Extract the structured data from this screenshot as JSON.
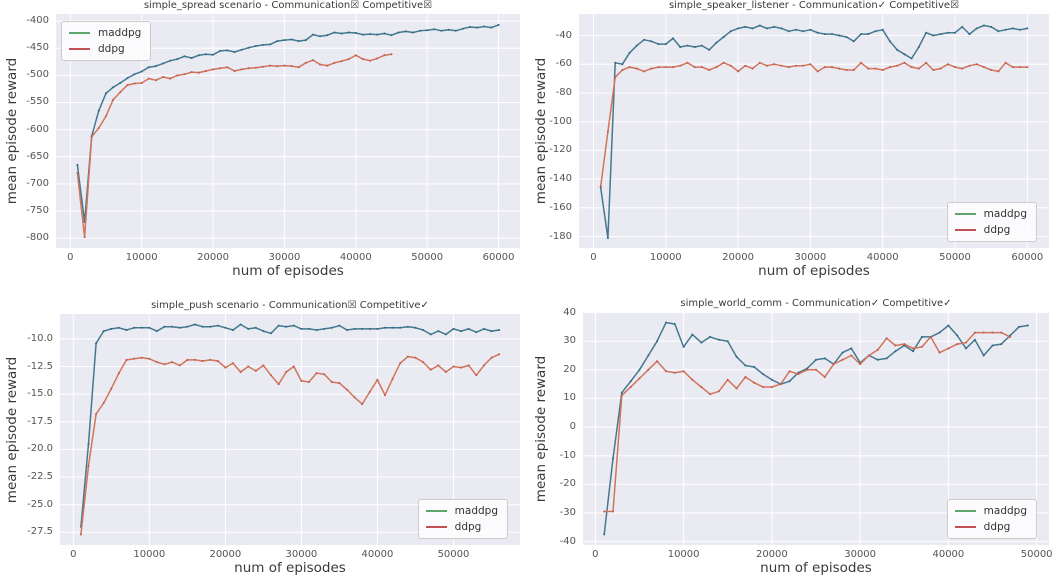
{
  "figure": {
    "background": "#ffffff",
    "axes_background": "#eaeaf2",
    "grid_color": "#ffffff",
    "title_color": "#3a3a3a",
    "tick_color": "#555555"
  },
  "chart_data": [
    {
      "type": "line",
      "title": "simple_spread scenario - Communication☒ Competitive☒",
      "xlabel": "num of episodes",
      "ylabel": "mean episode reward",
      "grid": true,
      "legend_position": "top-left",
      "xlim": [
        -2000,
        63000
      ],
      "ylim": [
        -818,
        -387
      ],
      "xticks": [
        0,
        10000,
        20000,
        30000,
        40000,
        50000,
        60000
      ],
      "xtick_labels": [
        "0",
        "10000",
        "20000",
        "30000",
        "40000",
        "50000",
        "60000"
      ],
      "yticks": [
        -800,
        -750,
        -700,
        -650,
        -600,
        -550,
        -500,
        -450,
        -400
      ],
      "ytick_labels": [
        "-800",
        "-750",
        "-700",
        "-650",
        "-600",
        "-550",
        "-500",
        "-450",
        "-400"
      ],
      "series": [
        {
          "name": "maddpg",
          "line_color": "#44798e",
          "marker_color": "#2e6a88",
          "legend_color": "#5fa56d",
          "x_start": 1000,
          "x_step": 1000,
          "values": [
            -665,
            -770,
            -612,
            -565,
            -533,
            -522,
            -514,
            -505,
            -498,
            -493,
            -485,
            -483,
            -478,
            -473,
            -470,
            -465,
            -468,
            -463,
            -461,
            -462,
            -455,
            -454,
            -457,
            -453,
            -449,
            -446,
            -444,
            -443,
            -437,
            -435,
            -434,
            -437,
            -435,
            -425,
            -428,
            -426,
            -421,
            -423,
            -421,
            -422,
            -425,
            -424,
            -425,
            -423,
            -426,
            -421,
            -419,
            -421,
            -418,
            -417,
            -415,
            -418,
            -416,
            -418,
            -414,
            -411,
            -412,
            -410,
            -412,
            -407
          ]
        },
        {
          "name": "ddpg",
          "line_color": "#d1755b",
          "marker_color": "#c25a50",
          "legend_color": "#c25052",
          "x_start": 1000,
          "x_step": 1000,
          "values": [
            -680,
            -798,
            -613,
            -597,
            -575,
            -545,
            -531,
            -518,
            -515,
            -514,
            -506,
            -509,
            -503,
            -506,
            -500,
            -498,
            -494,
            -495,
            -492,
            -489,
            -487,
            -485,
            -492,
            -489,
            -487,
            -486,
            -484,
            -482,
            -483,
            -482,
            -483,
            -485,
            -477,
            -472,
            -480,
            -482,
            -477,
            -474,
            -470,
            -463,
            -470,
            -473,
            -469,
            -463,
            -461
          ]
        }
      ]
    },
    {
      "type": "line",
      "title": "simple_speaker_listener - Communication✓ Competitive☒",
      "xlabel": "num of episodes",
      "ylabel": "mean episode reward",
      "grid": true,
      "legend_position": "bottom-right",
      "xlim": [
        -2000,
        63000
      ],
      "ylim": [
        -188,
        -25
      ],
      "xticks": [
        0,
        10000,
        20000,
        30000,
        40000,
        50000,
        60000
      ],
      "xtick_labels": [
        "0",
        "10000",
        "20000",
        "30000",
        "40000",
        "50000",
        "60000"
      ],
      "yticks": [
        -180,
        -160,
        -140,
        -120,
        -100,
        -80,
        -60,
        -40
      ],
      "ytick_labels": [
        "-180",
        "-160",
        "-140",
        "-120",
        "-100",
        "-80",
        "-60",
        "-40"
      ],
      "series": [
        {
          "name": "maddpg",
          "line_color": "#44798e",
          "marker_color": "#2e6a88",
          "legend_color": "#5fa56d",
          "x_start": 1000,
          "x_step": 1000,
          "values": [
            -146,
            -181,
            -59,
            -60,
            -52,
            -47,
            -43,
            -44,
            -46,
            -46,
            -42,
            -48,
            -47,
            -48,
            -47,
            -50,
            -45,
            -41,
            -37,
            -35,
            -34,
            -35,
            -33,
            -35,
            -34,
            -35,
            -37,
            -36,
            -37,
            -36,
            -38,
            -39,
            -39,
            -40,
            -41,
            -44,
            -39,
            -39,
            -37,
            -36,
            -44,
            -50,
            -53,
            -56,
            -48,
            -38,
            -40,
            -39,
            -38,
            -38,
            -34,
            -39,
            -35,
            -33,
            -34,
            -37,
            -36,
            -35,
            -36,
            -35
          ]
        },
        {
          "name": "ddpg",
          "line_color": "#d1755b",
          "marker_color": "#c25a50",
          "legend_color": "#c25052",
          "x_start": 1000,
          "x_step": 1000,
          "values": [
            -145,
            -107,
            -69,
            -64,
            -62,
            -63,
            -65,
            -63,
            -62,
            -62,
            -62,
            -61,
            -59,
            -62,
            -62,
            -64,
            -62,
            -59,
            -61,
            -65,
            -61,
            -63,
            -59,
            -61,
            -60,
            -61,
            -62,
            -61,
            -61,
            -60,
            -65,
            -62,
            -62,
            -63,
            -64,
            -64,
            -59,
            -63,
            -63,
            -64,
            -62,
            -61,
            -59,
            -62,
            -63,
            -59,
            -64,
            -63,
            -60,
            -62,
            -63,
            -61,
            -60,
            -62,
            -64,
            -65,
            -59,
            -62,
            -62,
            -62
          ]
        }
      ]
    },
    {
      "type": "line",
      "title": "simple_push scenario - Communication☒ Competitive✓",
      "xlabel": "num of episodes",
      "ylabel": "mean episode reward",
      "grid": true,
      "legend_position": "bottom-right",
      "xlim": [
        -1750,
        58750
      ],
      "ylim": [
        -28.65,
        -7.75
      ],
      "xticks": [
        0,
        10000,
        20000,
        30000,
        40000,
        50000
      ],
      "xtick_labels": [
        "0",
        "10000",
        "20000",
        "30000",
        "40000",
        "50000"
      ],
      "yticks": [
        -27.5,
        -25.0,
        -22.5,
        -20.0,
        -17.5,
        -15.0,
        -12.5,
        -10.0
      ],
      "ytick_labels": [
        "-27.5",
        "-25.0",
        "-22.5",
        "-20.0",
        "-17.5",
        "-15.0",
        "-12.5",
        "-10.0"
      ],
      "series": [
        {
          "name": "maddpg",
          "line_color": "#44798e",
          "marker_color": "#2e6a88",
          "legend_color": "#5fa56d",
          "x_start": 1000,
          "x_step": 1000,
          "values": [
            -27.0,
            -19.5,
            -10.4,
            -9.3,
            -9.1,
            -9.0,
            -9.2,
            -9.0,
            -9.0,
            -9.0,
            -9.3,
            -8.9,
            -8.9,
            -9.0,
            -8.9,
            -8.7,
            -8.9,
            -8.9,
            -8.8,
            -9.0,
            -9.2,
            -8.7,
            -9.1,
            -9.0,
            -9.3,
            -9.5,
            -8.8,
            -8.9,
            -8.8,
            -9.1,
            -9.1,
            -9.2,
            -9.1,
            -9.0,
            -8.8,
            -9.2,
            -9.1,
            -9.1,
            -9.1,
            -9.1,
            -9.0,
            -9.0,
            -9.0,
            -8.9,
            -9.0,
            -9.2,
            -9.6,
            -9.3,
            -9.6,
            -9.1,
            -9.3,
            -9.1,
            -9.4,
            -9.1,
            -9.3,
            -9.2
          ]
        },
        {
          "name": "ddpg",
          "line_color": "#d1755b",
          "marker_color": "#c25a50",
          "legend_color": "#c25052",
          "x_start": 1000,
          "x_step": 1000,
          "values": [
            -27.7,
            -21.5,
            -16.8,
            -15.8,
            -14.5,
            -13.1,
            -11.9,
            -11.8,
            -11.7,
            -11.8,
            -12.1,
            -12.3,
            -12.1,
            -12.4,
            -11.9,
            -11.9,
            -12.0,
            -11.9,
            -12.0,
            -12.6,
            -12.2,
            -13.0,
            -12.5,
            -12.9,
            -12.4,
            -13.3,
            -14.1,
            -13.0,
            -12.5,
            -13.8,
            -13.9,
            -13.1,
            -13.2,
            -13.9,
            -14.0,
            -14.6,
            -15.3,
            -15.9,
            -14.8,
            -13.7,
            -15.1,
            -13.6,
            -12.2,
            -11.6,
            -11.7,
            -12.1,
            -12.8,
            -12.4,
            -13.0,
            -12.5,
            -12.6,
            -12.4,
            -13.3,
            -12.4,
            -11.7,
            -11.4
          ]
        }
      ]
    },
    {
      "type": "line",
      "title": "simple_world_comm - Communication✓ Competitive✓",
      "xlabel": "num of episodes",
      "ylabel": "mean episode reward",
      "grid": true,
      "legend_position": "bottom-right",
      "xlim": [
        -1400,
        51400
      ],
      "ylim": [
        -41.2,
        40.2
      ],
      "xticks": [
        0,
        10000,
        20000,
        30000,
        40000,
        50000
      ],
      "xtick_labels": [
        "0",
        "10000",
        "20000",
        "30000",
        "40000",
        "50000"
      ],
      "yticks": [
        -40,
        -30,
        -20,
        -10,
        0,
        10,
        20,
        30,
        40
      ],
      "ytick_labels": [
        "-40",
        "-30",
        "-20",
        "-10",
        "0",
        "10",
        "20",
        "30",
        "40"
      ],
      "series": [
        {
          "name": "maddpg",
          "line_color": "#44798e",
          "marker_color": "#2e6a88",
          "legend_color": "#5fa56d",
          "x_start": 1000,
          "x_step": 1000,
          "values": [
            -37.5,
            -11,
            12,
            16,
            20,
            25,
            30,
            36.5,
            36,
            28,
            32.3,
            29.5,
            31.5,
            30.5,
            30,
            24.5,
            21.5,
            21,
            18.5,
            16.5,
            15,
            16,
            19,
            20.5,
            23.5,
            24,
            22,
            26,
            27.5,
            22.5,
            25,
            23.5,
            24,
            26.5,
            28.5,
            26.5,
            31.5,
            31.5,
            33,
            35.5,
            32,
            27.5,
            30.5,
            25,
            28.5,
            29,
            32,
            35,
            35.5
          ]
        },
        {
          "name": "ddpg",
          "line_color": "#d1755b",
          "marker_color": "#c25a50",
          "legend_color": "#c25052",
          "x_start": 1000,
          "x_step": 1000,
          "values": [
            -29.5,
            -29.5,
            11,
            14,
            17,
            20,
            23,
            19.5,
            19,
            19.5,
            16.5,
            14,
            11.5,
            12.5,
            16.5,
            13.5,
            17.5,
            15.5,
            14,
            14,
            15,
            19.5,
            18.5,
            20,
            20,
            17.5,
            22,
            23.5,
            25,
            22,
            25,
            27,
            31,
            28.5,
            29,
            27.5,
            28,
            31.5,
            26,
            27.5,
            29,
            29.5,
            33,
            33,
            33,
            33,
            31.5
          ]
        }
      ]
    }
  ]
}
